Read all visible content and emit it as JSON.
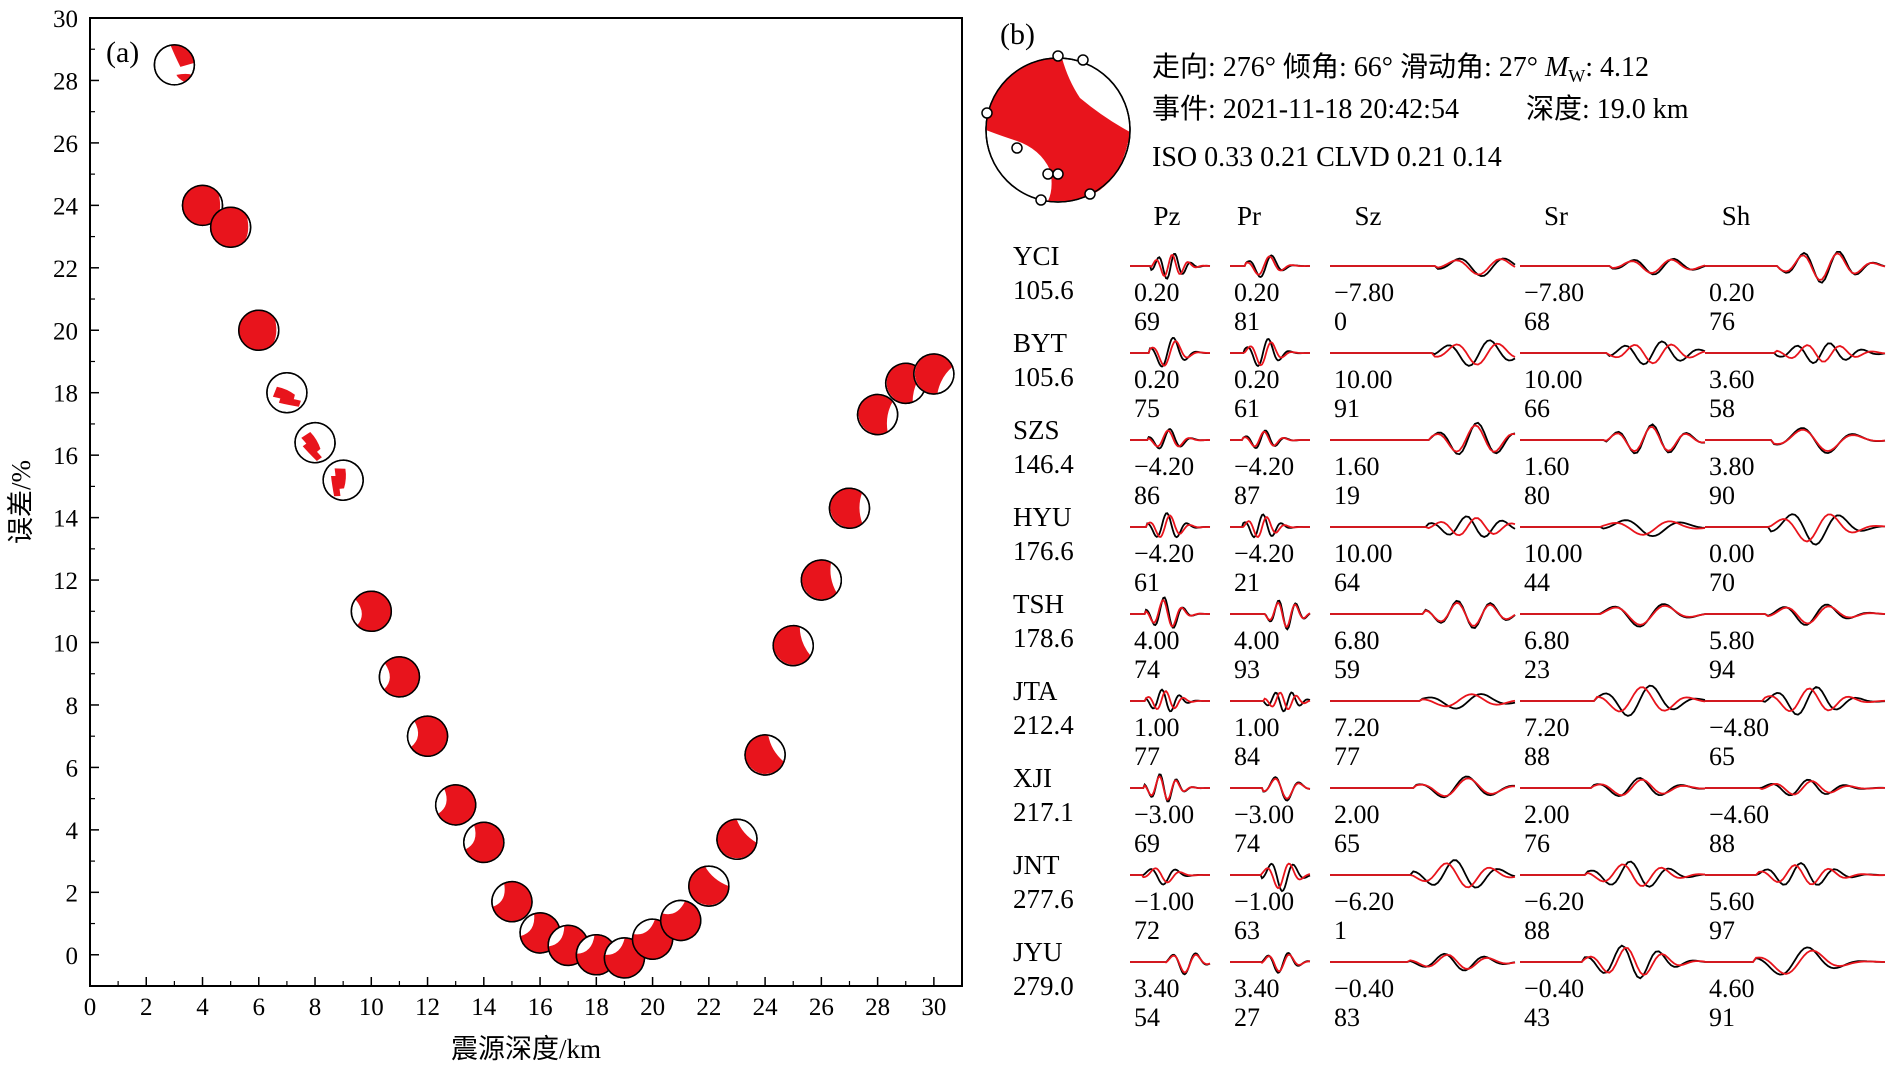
{
  "chart_data": [
    {
      "type": "scatter",
      "panel_label": "(a)",
      "xlabel": "震源深度/km",
      "ylabel": "误差/%",
      "xlim": [
        0,
        31
      ],
      "ylim": [
        -1,
        30
      ],
      "xticks": [
        0,
        2,
        4,
        6,
        8,
        10,
        12,
        14,
        16,
        18,
        20,
        22,
        24,
        26,
        28,
        30
      ],
      "yticks": [
        0,
        2,
        4,
        6,
        8,
        10,
        12,
        14,
        16,
        18,
        20,
        22,
        24,
        26,
        28,
        30
      ],
      "marker": "beachball",
      "fill_color": "#e8141c",
      "x": [
        3,
        4,
        5,
        6,
        7,
        8,
        9,
        10,
        11,
        12,
        13,
        14,
        15,
        16,
        17,
        18,
        19,
        20,
        21,
        22,
        23,
        24,
        25,
        26,
        27,
        28,
        29,
        30
      ],
      "y": [
        28.5,
        24.0,
        23.3,
        20.0,
        18.0,
        16.4,
        15.2,
        11.0,
        8.9,
        7.0,
        4.8,
        3.6,
        1.7,
        0.7,
        0.3,
        0.0,
        -0.1,
        0.5,
        1.1,
        2.2,
        3.7,
        6.4,
        9.9,
        12.0,
        14.3,
        17.3,
        18.3,
        18.6
      ]
    },
    {
      "type": "waveform_fit",
      "panel_label": "(b)",
      "header": {
        "line1_a": "走向: 276° 倾角: 66° 滑动角: 27° ",
        "mw_symbol": "M",
        "mw_sub": "W",
        "line1_b": ": 4.12",
        "line2_a": "事件: 2021-11-18 20:42:54",
        "line2_b": "深度: 19.0 km",
        "line3": "ISO 0.33 0.21 CLVD 0.21 0.14"
      },
      "components": [
        "Pz",
        "Pr",
        "Sz",
        "Sr",
        "Sh"
      ],
      "observed_color": "#000000",
      "synthetic_color": "#e8141c",
      "stations": [
        {
          "name": "YCI",
          "distance": "105.6",
          "shift": [
            "0.20",
            "0.20",
            "−7.80",
            "−7.80",
            "0.20"
          ],
          "cc": [
            "69",
            "81",
            "0",
            "68",
            "76"
          ]
        },
        {
          "name": "BYT",
          "distance": "105.6",
          "shift": [
            "0.20",
            "0.20",
            "10.00",
            "10.00",
            "3.60"
          ],
          "cc": [
            "75",
            "61",
            "91",
            "66",
            "58"
          ]
        },
        {
          "name": "SZS",
          "distance": "146.4",
          "shift": [
            "−4.20",
            "−4.20",
            "1.60",
            "1.60",
            "3.80"
          ],
          "cc": [
            "86",
            "87",
            "19",
            "80",
            "90"
          ]
        },
        {
          "name": "HYU",
          "distance": "176.6",
          "shift": [
            "−4.20",
            "−4.20",
            "10.00",
            "10.00",
            "0.00"
          ],
          "cc": [
            "61",
            "21",
            "64",
            "44",
            "70"
          ]
        },
        {
          "name": "TSH",
          "distance": "178.6",
          "shift": [
            "4.00",
            "4.00",
            "6.80",
            "6.80",
            "5.80"
          ],
          "cc": [
            "74",
            "93",
            "59",
            "23",
            "94"
          ]
        },
        {
          "name": "JTA",
          "distance": "212.4",
          "shift": [
            "1.00",
            "1.00",
            "7.20",
            "7.20",
            "−4.80"
          ],
          "cc": [
            "77",
            "84",
            "77",
            "88",
            "65"
          ]
        },
        {
          "name": "XJI",
          "distance": "217.1",
          "shift": [
            "−3.00",
            "−3.00",
            "2.00",
            "2.00",
            "−4.60"
          ],
          "cc": [
            "69",
            "74",
            "65",
            "76",
            "88"
          ]
        },
        {
          "name": "JNT",
          "distance": "277.6",
          "shift": [
            "−1.00",
            "−1.00",
            "−6.20",
            "−6.20",
            "5.60"
          ],
          "cc": [
            "72",
            "63",
            "1",
            "88",
            "97"
          ]
        },
        {
          "name": "JYU",
          "distance": "279.0",
          "shift": [
            "3.40",
            "3.40",
            "−0.40",
            "−0.40",
            "4.60"
          ],
          "cc": [
            "54",
            "27",
            "83",
            "43",
            "91"
          ]
        }
      ]
    }
  ]
}
